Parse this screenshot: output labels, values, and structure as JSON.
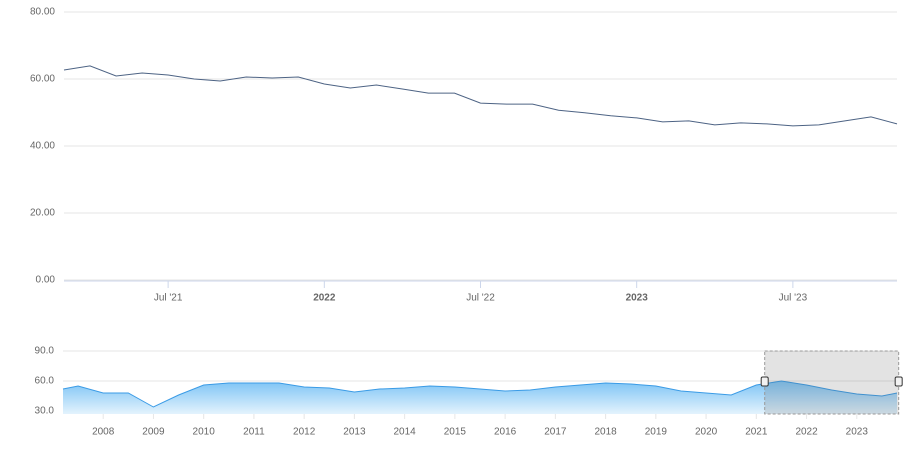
{
  "chart_data": [
    {
      "type": "line",
      "x": [
        "2021-03",
        "2021-04",
        "2021-05",
        "2021-06",
        "2021-07",
        "2021-08",
        "2021-09",
        "2021-10",
        "2021-11",
        "2021-12",
        "2022-01",
        "2022-02",
        "2022-03",
        "2022-04",
        "2022-05",
        "2022-06",
        "2022-07",
        "2022-08",
        "2022-09",
        "2022-10",
        "2022-11",
        "2022-12",
        "2023-01",
        "2023-02",
        "2023-03",
        "2023-04",
        "2023-05",
        "2023-06",
        "2023-07",
        "2023-08",
        "2023-09",
        "2023-10",
        "2023-11"
      ],
      "values": [
        62.7,
        63.9,
        60.9,
        61.8,
        61.2,
        60.0,
        59.4,
        60.6,
        60.3,
        60.6,
        58.5,
        57.3,
        58.2,
        57.0,
        55.8,
        55.8,
        52.8,
        52.5,
        52.5,
        50.7,
        49.9,
        49.0,
        48.4,
        47.2,
        47.5,
        46.3,
        46.9,
        46.6,
        46.0,
        46.3,
        47.5,
        48.7,
        46.6
      ],
      "color": "#4d6384",
      "xlim": [
        "2021-03",
        "2023-11"
      ],
      "xticks": [
        {
          "value": "2021-07",
          "label": "Jul '21"
        },
        {
          "value": "2022-01",
          "label": "2022"
        },
        {
          "value": "2022-07",
          "label": "Jul '22"
        },
        {
          "value": "2023-01",
          "label": "2023"
        },
        {
          "value": "2023-07",
          "label": "Jul '23"
        }
      ],
      "ylim": [
        0,
        80
      ],
      "yticks": [
        {
          "value": 0,
          "label": "0.00"
        },
        {
          "value": 20,
          "label": "20.00"
        },
        {
          "value": 40,
          "label": "40.00"
        },
        {
          "value": 60,
          "label": "60.00"
        },
        {
          "value": 80,
          "label": "80.00"
        }
      ],
      "grid": true
    },
    {
      "type": "area",
      "x": [
        2007.2,
        2007.5,
        2008,
        2008.5,
        2009,
        2009.5,
        2010,
        2010.5,
        2011,
        2011.5,
        2012,
        2012.5,
        2013,
        2013.5,
        2014,
        2014.5,
        2015,
        2015.5,
        2016,
        2016.5,
        2017,
        2017.5,
        2018,
        2018.5,
        2019,
        2019.5,
        2020,
        2020.5,
        2021,
        2021.5,
        2022,
        2022.5,
        2023,
        2023.5,
        2023.8
      ],
      "values": [
        52,
        55,
        48,
        48,
        34,
        46,
        56,
        58,
        58,
        58,
        54,
        53,
        49,
        52,
        53,
        55,
        54,
        52,
        50,
        51,
        54,
        56,
        58,
        57,
        55,
        50,
        48,
        46,
        56,
        60,
        56,
        51,
        47,
        45,
        48
      ],
      "color": "#3a9be6",
      "xlim": [
        2007.2,
        2023.8
      ],
      "xticks": [
        2008,
        2009,
        2010,
        2011,
        2012,
        2013,
        2014,
        2015,
        2016,
        2017,
        2018,
        2019,
        2020,
        2021,
        2022,
        2023
      ],
      "ylim": [
        30,
        90
      ],
      "yticks": [
        {
          "value": 30,
          "label": "30.0"
        },
        {
          "value": 60,
          "label": "60.0"
        },
        {
          "value": 90,
          "label": "90.0"
        }
      ],
      "grid": true
    }
  ]
}
